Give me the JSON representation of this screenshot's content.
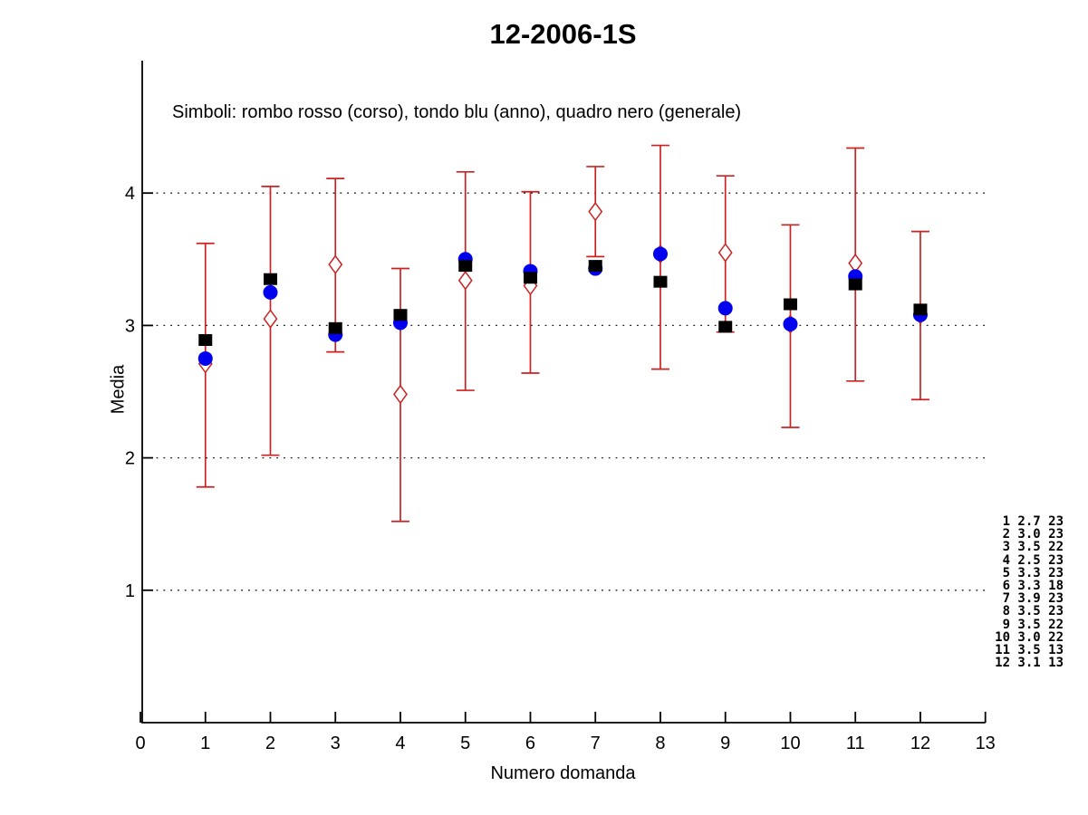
{
  "title": "12-2006-1S",
  "subtitle": "Simboli: rombo rosso (corso), tondo blu (anno), quadro nero (generale)",
  "colors": {
    "corso": "#cc2222",
    "anno": "#0000ee",
    "generale": "#000000",
    "axis": "#000000",
    "grid": "#1a1a1a",
    "background": "#ffffff"
  },
  "chart_data": {
    "type": "scatter",
    "title": "12-2006-1S",
    "legend_note": "Simboli: rombo rosso (corso), tondo blu (anno), quadro nero (generale)",
    "xlabel": "Numero domanda",
    "ylabel": "Media",
    "xlim": [
      0,
      13
    ],
    "ylim": [
      0,
      5
    ],
    "xticks": [
      0,
      1,
      2,
      3,
      4,
      5,
      6,
      7,
      8,
      9,
      10,
      11,
      12,
      13
    ],
    "yticks": [
      1,
      2,
      3,
      4
    ],
    "grid": "dotted horizontal lines at y ticks",
    "legend_position": "text note top-left inside plot",
    "x": [
      1,
      2,
      3,
      4,
      5,
      6,
      7,
      8,
      9,
      10,
      11,
      12
    ],
    "series": [
      {
        "name": "corso",
        "marker": "open-diamond-red",
        "values": [
          2.71,
          3.05,
          3.46,
          2.48,
          3.34,
          3.3,
          3.86,
          3.54,
          3.55,
          3.01,
          3.47,
          3.08
        ],
        "error_low": [
          1.78,
          2.02,
          2.8,
          1.52,
          2.51,
          2.64,
          3.52,
          2.67,
          2.95,
          2.23,
          2.58,
          2.44
        ],
        "error_high": [
          3.62,
          4.05,
          4.11,
          3.43,
          4.16,
          4.01,
          4.2,
          4.36,
          4.13,
          3.76,
          4.34,
          3.71
        ]
      },
      {
        "name": "anno",
        "marker": "filled-circle-blue",
        "values": [
          2.75,
          3.25,
          2.93,
          3.02,
          3.5,
          3.41,
          3.43,
          3.54,
          3.13,
          3.01,
          3.37,
          3.08
        ]
      },
      {
        "name": "generale",
        "marker": "filled-square-black",
        "values": [
          2.89,
          3.35,
          2.98,
          3.08,
          3.45,
          3.36,
          3.45,
          3.33,
          2.99,
          3.16,
          3.31,
          3.12
        ]
      }
    ],
    "annotation_table": {
      "columns": [
        "numero",
        "media",
        "n"
      ],
      "rows": [
        [
          1,
          "2.7",
          23
        ],
        [
          2,
          "3.0",
          23
        ],
        [
          3,
          "3.5",
          22
        ],
        [
          4,
          "2.5",
          23
        ],
        [
          5,
          "3.3",
          23
        ],
        [
          6,
          "3.3",
          18
        ],
        [
          7,
          "3.9",
          23
        ],
        [
          8,
          "3.5",
          23
        ],
        [
          9,
          "3.5",
          22
        ],
        [
          10,
          "3.0",
          22
        ],
        [
          11,
          "3.5",
          13
        ],
        [
          12,
          "3.1",
          13
        ]
      ],
      "lines": [
        " 1 2.7 23",
        " 2 3.0 23",
        " 3 3.5 22",
        " 4 2.5 23",
        " 5 3.3 23",
        " 6 3.3 18",
        " 7 3.9 23",
        " 8 3.5 23",
        " 9 3.5 22",
        "10 3.0 22",
        "11 3.5 13",
        "12 3.1 13"
      ]
    }
  }
}
